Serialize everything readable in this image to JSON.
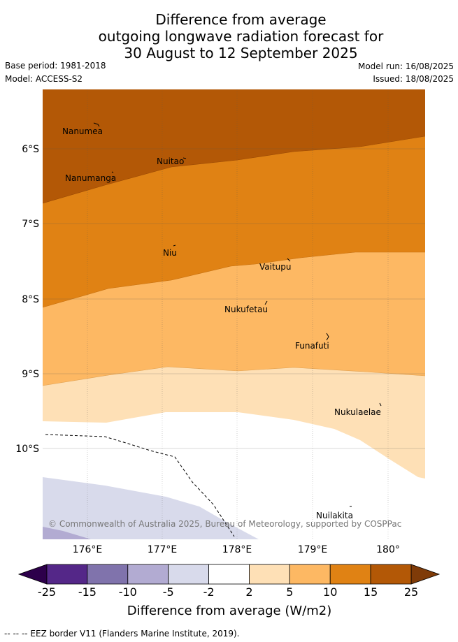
{
  "title": {
    "line1": "Difference from average",
    "line2": "outgoing longwave radiation forecast for",
    "line3": "30 August to 12 September 2025"
  },
  "meta": {
    "base_period": "Base period: 1981-2018",
    "model": "Model: ACCESS-S2",
    "model_run": "Model run: 16/08/2025",
    "issued": "Issued: 18/08/2025"
  },
  "map": {
    "lat_labels": [
      "6°S",
      "7°S",
      "8°S",
      "9°S",
      "10°S"
    ],
    "lon_labels": [
      "176°E",
      "177°E",
      "178°E",
      "179°E",
      "180°"
    ],
    "places": [
      {
        "name": "Nanumea"
      },
      {
        "name": "Nuitao"
      },
      {
        "name": "Nanumanga"
      },
      {
        "name": "Niu"
      },
      {
        "name": "Vaitupu"
      },
      {
        "name": "Nukufetau"
      },
      {
        "name": "Funafuti"
      },
      {
        "name": "Nukulaelae"
      },
      {
        "name": "Nuilakita"
      }
    ],
    "copyright": "© Commonwealth of Australia 2025, Bureau of Meteorology, supported by COSPPac",
    "colors": {
      "band_15_25": "#b35806",
      "band_10_15": "#e08214",
      "band_5_10": "#fdb863",
      "band_2_5": "#fee0b6",
      "band_m2_2": "#ffffff",
      "band_m5_m2": "#d8daeb",
      "band_m10_m5": "#b2abd2"
    }
  },
  "colorbar": {
    "labels": [
      "-25",
      "-15",
      "-10",
      "-5",
      "-2",
      "2",
      "5",
      "10",
      "15",
      "25"
    ],
    "colors": [
      "#542788",
      "#8073ac",
      "#b2abd2",
      "#d8daeb",
      "#ffffff",
      "#fee0b6",
      "#fdb863",
      "#e08214",
      "#b35806"
    ],
    "under_color": "#2d004b",
    "over_color": "#7f3b08",
    "title": "Difference from average (W/m2)"
  },
  "footer": "-- -- -- EEZ border V11 (Flanders Marine Institute, 2019)."
}
